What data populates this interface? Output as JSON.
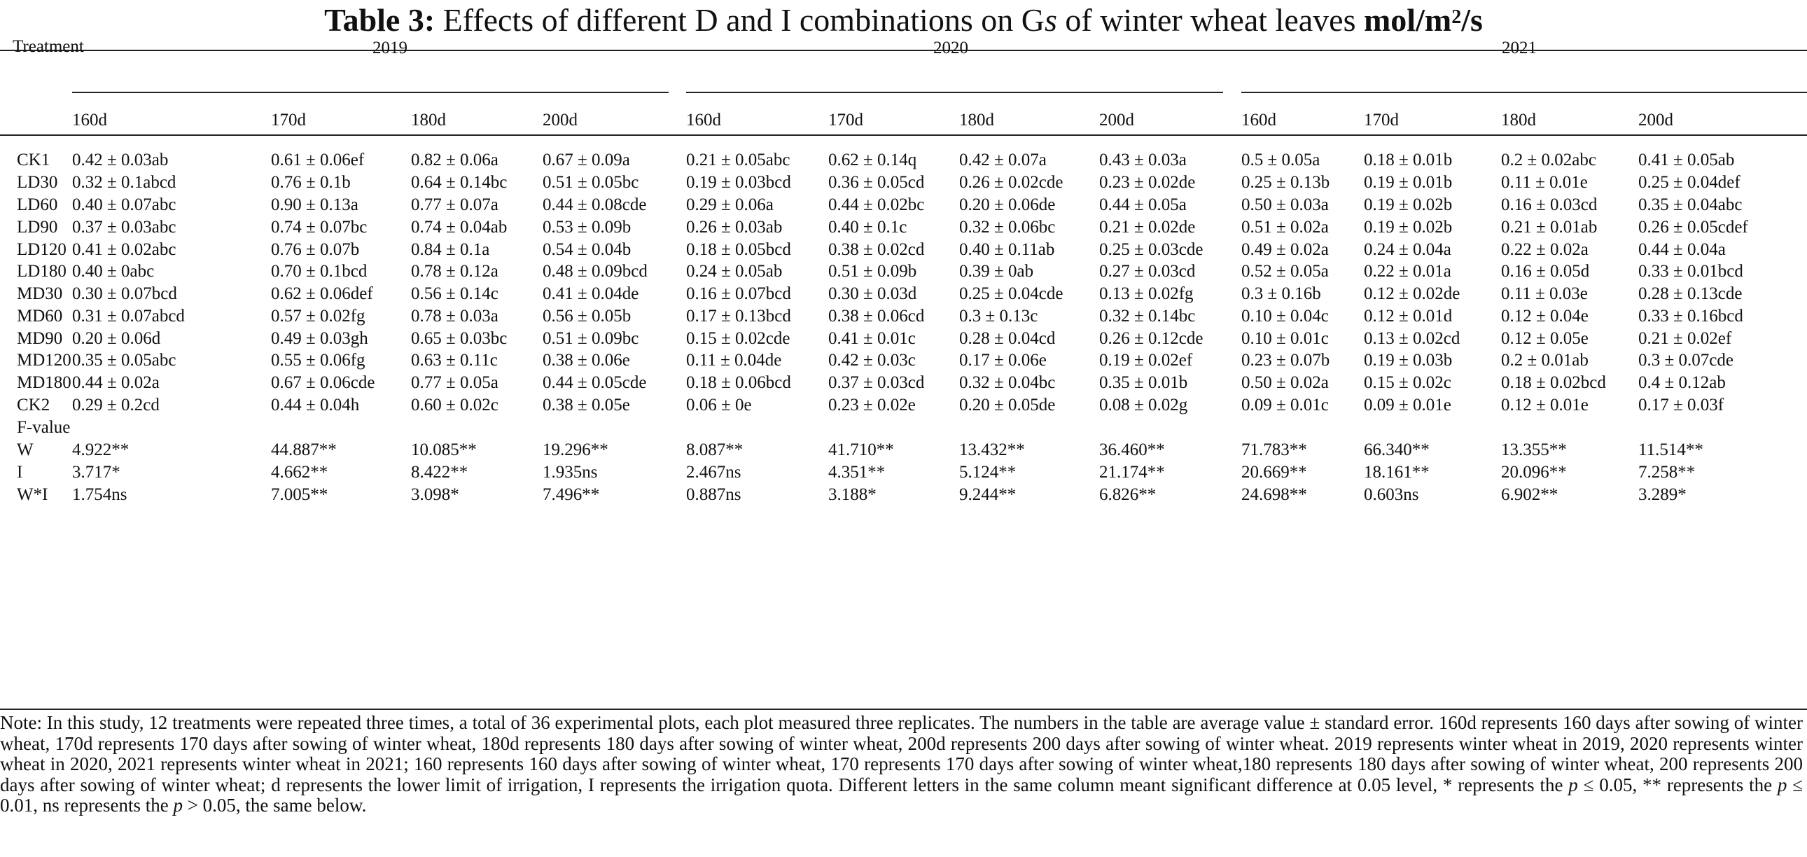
{
  "title": {
    "label": "Table 3:",
    "text": "Effects of different D and I combinations on G",
    "italic": "s",
    "text2": "of winter wheat leaves",
    "unit": "mol/m",
    "unit_sup": "2",
    "unit_tail": "/s"
  },
  "header": {
    "treatment": "Treatment",
    "years": [
      "2019",
      "2020",
      "2021"
    ],
    "days": [
      "160d",
      "170d",
      "180d",
      "200d"
    ]
  },
  "rows": [
    {
      "label": "CK1",
      "cells": [
        "0.42 ± 0.03ab",
        "0.61 ± 0.06ef",
        "0.82 ± 0.06a",
        "0.67 ± 0.09a",
        "0.21 ± 0.05abc",
        "0.62 ± 0.14q",
        "0.42 ± 0.07a",
        "0.43 ± 0.03a",
        "0.5 ± 0.05a",
        "0.18 ± 0.01b",
        "0.2 ± 0.02abc",
        "0.41 ± 0.05ab"
      ]
    },
    {
      "label": "LD30",
      "cells": [
        "0.32 ± 0.1abcd",
        "0.76 ± 0.1b",
        "0.64 ± 0.14bc",
        "0.51 ± 0.05bc",
        "0.19 ± 0.03bcd",
        "0.36 ± 0.05cd",
        "0.26 ± 0.02cde",
        "0.23 ± 0.02de",
        "0.25 ± 0.13b",
        "0.19 ± 0.01b",
        "0.11 ± 0.01e",
        "0.25 ± 0.04def"
      ]
    },
    {
      "label": "LD60",
      "cells": [
        "0.40 ± 0.07abc",
        "0.90 ± 0.13a",
        "0.77 ± 0.07a",
        "0.44 ± 0.08cde",
        "0.29 ± 0.06a",
        "0.44 ± 0.02bc",
        "0.20 ± 0.06de",
        "0.44 ± 0.05a",
        "0.50 ± 0.03a",
        "0.19 ± 0.02b",
        "0.16 ± 0.03cd",
        "0.35 ± 0.04abc"
      ]
    },
    {
      "label": "LD90",
      "cells": [
        "0.37 ± 0.03abc",
        "0.74 ± 0.07bc",
        "0.74 ± 0.04ab",
        "0.53 ± 0.09b",
        "0.26 ± 0.03ab",
        "0.40 ± 0.1c",
        "0.32 ± 0.06bc",
        "0.21 ± 0.02de",
        "0.51 ± 0.02a",
        "0.19 ± 0.02b",
        "0.21 ± 0.01ab",
        "0.26 ± 0.05cdef"
      ]
    },
    {
      "label": "LD120",
      "cells": [
        "0.41 ± 0.02abc",
        "0.76 ± 0.07b",
        "0.84 ± 0.1a",
        "0.54 ± 0.04b",
        "0.18 ± 0.05bcd",
        "0.38 ± 0.02cd",
        "0.40 ± 0.11ab",
        "0.25 ± 0.03cde",
        "0.49 ± 0.02a",
        "0.24 ± 0.04a",
        "0.22 ± 0.02a",
        "0.44 ± 0.04a"
      ]
    },
    {
      "label": "LD180",
      "cells": [
        "0.40 ± 0abc",
        "0.70 ± 0.1bcd",
        "0.78 ± 0.12a",
        "0.48 ± 0.09bcd",
        "0.24 ± 0.05ab",
        "0.51 ± 0.09b",
        "0.39 ± 0ab",
        "0.27 ± 0.03cd",
        "0.52 ± 0.05a",
        "0.22 ± 0.01a",
        "0.16 ± 0.05d",
        "0.33 ± 0.01bcd"
      ]
    },
    {
      "label": "MD30",
      "cells": [
        "0.30 ± 0.07bcd",
        "0.62 ± 0.06def",
        "0.56 ± 0.14c",
        "0.41 ± 0.04de",
        "0.16 ± 0.07bcd",
        "0.30 ± 0.03d",
        "0.25 ± 0.04cde",
        "0.13 ± 0.02fg",
        "0.3 ± 0.16b",
        "0.12 ± 0.02de",
        "0.11 ± 0.03e",
        "0.28 ± 0.13cde"
      ]
    },
    {
      "label": "MD60",
      "cells": [
        "0.31 ± 0.07abcd",
        "0.57 ± 0.02fg",
        "0.78 ± 0.03a",
        "0.56 ± 0.05b",
        "0.17 ± 0.13bcd",
        "0.38 ± 0.06cd",
        "0.3 ± 0.13c",
        "0.32 ± 0.14bc",
        "0.10 ± 0.04c",
        "0.12 ± 0.01d",
        "0.12 ± 0.04e",
        "0.33 ± 0.16bcd"
      ]
    },
    {
      "label": "MD90",
      "cells": [
        "0.20 ± 0.06d",
        "0.49 ± 0.03gh",
        "0.65 ± 0.03bc",
        "0.51 ± 0.09bc",
        "0.15 ± 0.02cde",
        "0.41 ± 0.01c",
        "0.28 ± 0.04cd",
        "0.26 ± 0.12cde",
        "0.10 ± 0.01c",
        "0.13 ± 0.02cd",
        "0.12 ± 0.05e",
        "0.21 ± 0.02ef"
      ]
    },
    {
      "label": "MD120",
      "cells": [
        "0.35 ± 0.05abc",
        "0.55 ± 0.06fg",
        "0.63 ± 0.11c",
        "0.38 ± 0.06e",
        "0.11 ± 0.04de",
        "0.42 ± 0.03c",
        "0.17 ± 0.06e",
        "0.19 ± 0.02ef",
        "0.23 ± 0.07b",
        "0.19 ± 0.03b",
        "0.2 ± 0.01ab",
        "0.3 ± 0.07cde"
      ]
    },
    {
      "label": "MD180",
      "cells": [
        "0.44 ± 0.02a",
        "0.67 ± 0.06cde",
        "0.77 ± 0.05a",
        "0.44 ± 0.05cde",
        "0.18 ± 0.06bcd",
        "0.37 ± 0.03cd",
        "0.32 ± 0.04bc",
        "0.35 ± 0.01b",
        "0.50 ± 0.02a",
        "0.15 ± 0.02c",
        "0.18 ± 0.02bcd",
        "0.4 ± 0.12ab"
      ]
    },
    {
      "label": "CK2",
      "cells": [
        "0.29 ± 0.2cd",
        "0.44 ± 0.04h",
        "0.60 ± 0.02c",
        "0.38 ± 0.05e",
        "0.06 ± 0e",
        "0.23 ± 0.02e",
        "0.20 ± 0.05de",
        "0.08 ± 0.02g",
        "0.09 ± 0.01c",
        "0.09 ± 0.01e",
        "0.12 ± 0.01e",
        "0.17 ± 0.03f"
      ]
    },
    {
      "label": "F-value",
      "cells": [
        "",
        "",
        "",
        "",
        "",
        "",
        "",
        "",
        "",
        "",
        "",
        ""
      ]
    },
    {
      "label": "W",
      "cells": [
        "4.922**",
        "44.887**",
        "10.085**",
        "19.296**",
        "8.087**",
        "41.710**",
        "13.432**",
        "36.460**",
        "71.783**",
        "66.340**",
        "13.355**",
        "11.514**"
      ]
    },
    {
      "label": "I",
      "cells": [
        "3.717*",
        "4.662**",
        "8.422**",
        "1.935ns",
        "2.467ns",
        "4.351**",
        "5.124**",
        "21.174**",
        "20.669**",
        "18.161**",
        "20.096**",
        "7.258**"
      ]
    },
    {
      "label": "W*I",
      "cells": [
        "1.754ns",
        "7.005**",
        "3.098*",
        "7.496**",
        "0.887ns",
        "3.188*",
        "9.244**",
        "6.826**",
        "24.698**",
        "0.603ns",
        "6.902**",
        "3.289*"
      ]
    }
  ],
  "note": {
    "part1": "Note: In this study, 12 treatments were repeated three times, a total of 36 experimental plots, each plot measured three replicates. The numbers in the table are average value ± standard error. 160d represents 160 days after sowing of winter wheat, 170d represents 170 days after sowing of winter wheat, 180d represents 180 days after sowing of winter wheat, 200d represents 200 days after sowing of winter wheat. 2019 represents winter wheat in 2019, 2020 represents winter wheat in 2020, 2021 represents winter wheat in 2021; 160 represents 160 days after sowing of winter wheat, 170 represents 170 days after sowing of winter wheat,180 represents 180 days after sowing of winter wheat, 200 represents 200 days after sowing of winter wheat; d represents the lower limit of irrigation, I represents the irrigation quota. Different letters in the same column meant significant difference at 0.05 level, * represents the",
    "p1": "p",
    "part2": "≤ 0.05, ** represents the",
    "p2": "p",
    "part3": "≤ 0.01, ns represents the",
    "p3": "p",
    "part4": "> 0.05, the same below."
  }
}
